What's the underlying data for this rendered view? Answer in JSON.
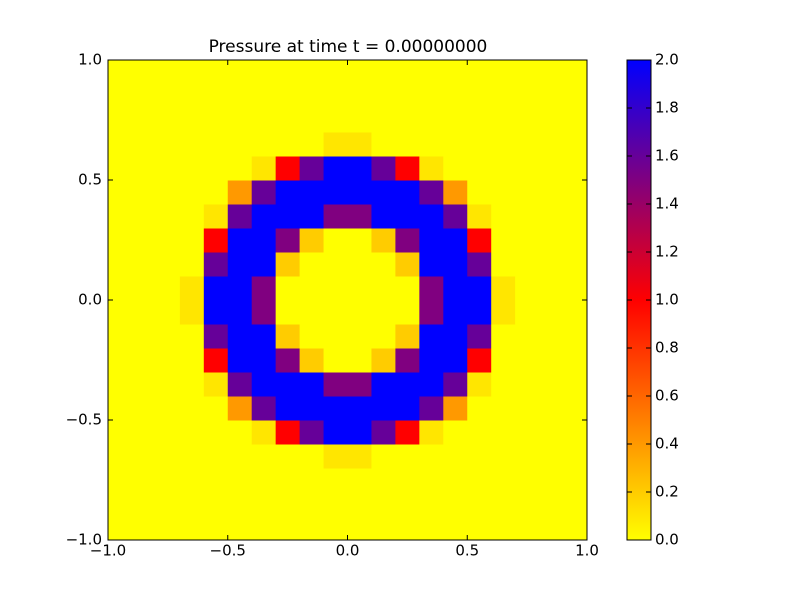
{
  "chart_data": {
    "type": "heatmap",
    "title": "Pressure at time t =     0.00000000",
    "x": [
      -0.95,
      -0.85,
      -0.75,
      -0.65,
      -0.55,
      -0.45,
      -0.35,
      -0.25,
      -0.15,
      -0.05,
      0.05,
      0.15,
      0.25,
      0.35,
      0.45,
      0.55,
      0.65,
      0.75,
      0.85,
      0.95
    ],
    "y": [
      -0.95,
      -0.85,
      -0.75,
      -0.65,
      -0.55,
      -0.45,
      -0.35,
      -0.25,
      -0.15,
      -0.05,
      0.05,
      0.15,
      0.25,
      0.35,
      0.45,
      0.55,
      0.65,
      0.75,
      0.85,
      0.95
    ],
    "z": [
      [
        0,
        0,
        0,
        0,
        0,
        0,
        0,
        0,
        0,
        0,
        0,
        0,
        0,
        0,
        0,
        0,
        0,
        0,
        0,
        0
      ],
      [
        0,
        0,
        0,
        0,
        0,
        0,
        0,
        0,
        0,
        0,
        0,
        0,
        0,
        0,
        0,
        0,
        0,
        0,
        0,
        0
      ],
      [
        0,
        0,
        0,
        0,
        0,
        0,
        0,
        0,
        0,
        0,
        0,
        0,
        0,
        0,
        0,
        0,
        0,
        0,
        0,
        0
      ],
      [
        0,
        0,
        0,
        0,
        0,
        0,
        0,
        0,
        0,
        0.1,
        0.1,
        0,
        0,
        0,
        0,
        0,
        0,
        0,
        0,
        0
      ],
      [
        0,
        0,
        0,
        0,
        0,
        0,
        0.1,
        1,
        1.6,
        2,
        2,
        1.6,
        1,
        0.1,
        0,
        0,
        0,
        0,
        0,
        0
      ],
      [
        0,
        0,
        0,
        0,
        0,
        0.4,
        1.6,
        2,
        2,
        2,
        2,
        2,
        2,
        1.6,
        0.4,
        0,
        0,
        0,
        0,
        0
      ],
      [
        0,
        0,
        0,
        0,
        0.1,
        1.6,
        2,
        2,
        2,
        1.5,
        1.5,
        2,
        2,
        2,
        1.6,
        0.1,
        0,
        0,
        0,
        0
      ],
      [
        0,
        0,
        0,
        0,
        1,
        2,
        2,
        1.5,
        0.2,
        0,
        0,
        0.2,
        1.5,
        2,
        2,
        1,
        0,
        0,
        0,
        0
      ],
      [
        0,
        0,
        0,
        0,
        1.6,
        2,
        2,
        0.2,
        0,
        0,
        0,
        0,
        0.2,
        2,
        2,
        1.6,
        0,
        0,
        0,
        0
      ],
      [
        0,
        0,
        0,
        0.1,
        2,
        2,
        1.5,
        0,
        0,
        0,
        0,
        0,
        0,
        1.5,
        2,
        2,
        0.1,
        0,
        0,
        0
      ],
      [
        0,
        0,
        0,
        0.1,
        2,
        2,
        1.5,
        0,
        0,
        0,
        0,
        0,
        0,
        1.5,
        2,
        2,
        0.1,
        0,
        0,
        0
      ],
      [
        0,
        0,
        0,
        0,
        1.6,
        2,
        2,
        0.2,
        0,
        0,
        0,
        0,
        0.2,
        2,
        2,
        1.6,
        0,
        0,
        0,
        0
      ],
      [
        0,
        0,
        0,
        0,
        1,
        2,
        2,
        1.5,
        0.2,
        0,
        0,
        0.2,
        1.5,
        2,
        2,
        1,
        0,
        0,
        0,
        0
      ],
      [
        0,
        0,
        0,
        0,
        0.1,
        1.6,
        2,
        2,
        2,
        1.5,
        1.5,
        2,
        2,
        2,
        1.6,
        0.1,
        0,
        0,
        0,
        0
      ],
      [
        0,
        0,
        0,
        0,
        0,
        0.4,
        1.6,
        2,
        2,
        2,
        2,
        2,
        2,
        1.6,
        0.4,
        0,
        0,
        0,
        0,
        0
      ],
      [
        0,
        0,
        0,
        0,
        0,
        0,
        0.1,
        1,
        1.6,
        2,
        2,
        1.6,
        1,
        0.1,
        0,
        0,
        0,
        0,
        0,
        0
      ],
      [
        0,
        0,
        0,
        0,
        0,
        0,
        0,
        0,
        0,
        0.1,
        0.1,
        0,
        0,
        0,
        0,
        0,
        0,
        0,
        0,
        0
      ],
      [
        0,
        0,
        0,
        0,
        0,
        0,
        0,
        0,
        0,
        0,
        0,
        0,
        0,
        0,
        0,
        0,
        0,
        0,
        0,
        0
      ],
      [
        0,
        0,
        0,
        0,
        0,
        0,
        0,
        0,
        0,
        0,
        0,
        0,
        0,
        0,
        0,
        0,
        0,
        0,
        0,
        0
      ],
      [
        0,
        0,
        0,
        0,
        0,
        0,
        0,
        0,
        0,
        0,
        0,
        0,
        0,
        0,
        0,
        0,
        0,
        0,
        0,
        0
      ]
    ],
    "colormap": [
      "#ffff00",
      "#ff0000",
      "#0000ff"
    ],
    "xlim": [
      -1,
      1
    ],
    "ylim": [
      -1,
      1
    ],
    "clim": [
      0,
      2
    ],
    "xticks": [
      {
        "value": -1,
        "label": "−1.0"
      },
      {
        "value": -0.5,
        "label": "−0.5"
      },
      {
        "value": 0,
        "label": "0.0"
      },
      {
        "value": 0.5,
        "label": "0.5"
      },
      {
        "value": 1,
        "label": "1.0"
      }
    ],
    "yticks": [
      {
        "value": -1,
        "label": "−1.0"
      },
      {
        "value": -0.5,
        "label": "−0.5"
      },
      {
        "value": 0,
        "label": "0.0"
      },
      {
        "value": 0.5,
        "label": "0.5"
      },
      {
        "value": 1,
        "label": "1.0"
      }
    ],
    "cticks": [
      {
        "value": 0,
        "label": "0.0"
      },
      {
        "value": 0.2,
        "label": "0.2"
      },
      {
        "value": 0.4,
        "label": "0.4"
      },
      {
        "value": 0.6,
        "label": "0.6"
      },
      {
        "value": 0.8,
        "label": "0.8"
      },
      {
        "value": 1,
        "label": "1.0"
      },
      {
        "value": 1.2,
        "label": "1.2"
      },
      {
        "value": 1.4,
        "label": "1.4"
      },
      {
        "value": 1.6,
        "label": "1.6"
      },
      {
        "value": 1.8,
        "label": "1.8"
      },
      {
        "value": 2,
        "label": "2.0"
      }
    ]
  }
}
